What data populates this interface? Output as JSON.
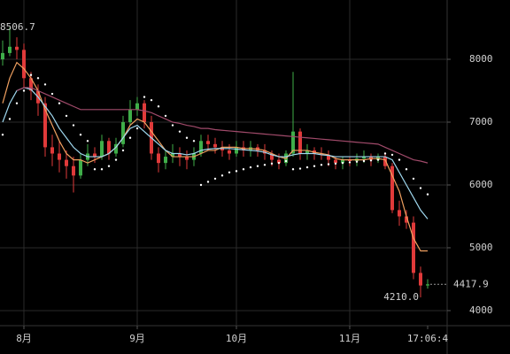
{
  "chart_data": {
    "type": "candlestick",
    "categories": [
      null,
      null,
      null,
      "8月",
      null,
      null,
      null,
      null,
      null,
      null,
      null,
      null,
      null,
      null,
      null,
      null,
      null,
      null,
      null,
      "9月",
      null,
      null,
      null,
      null,
      null,
      null,
      null,
      null,
      null,
      null,
      null,
      null,
      null,
      "10月",
      null,
      null,
      null,
      null,
      null,
      null,
      null,
      null,
      null,
      null,
      null,
      null,
      null,
      null,
      null,
      "11月",
      null,
      null,
      null,
      null,
      null,
      null,
      null,
      null,
      null,
      null,
      "17:06:4"
    ],
    "open": [
      8000,
      8100,
      8200,
      8150,
      7700,
      7500,
      7300,
      6600,
      6500,
      6400,
      6300,
      6150,
      6400,
      6500,
      6450,
      6700,
      6500,
      6650,
      7000,
      7200,
      7300,
      7000,
      6500,
      6350,
      6450,
      6500,
      6450,
      6400,
      6500,
      6700,
      6650,
      6600,
      6550,
      6500,
      6600,
      6550,
      6600,
      6550,
      6500,
      6400,
      6350,
      6500,
      6850,
      6500,
      6550,
      6500,
      6480,
      6400,
      6350,
      6400,
      6380,
      6420,
      6450,
      6400,
      6450,
      6300,
      5600,
      5500,
      5400,
      4600,
      4400
    ],
    "high": [
      8300,
      8506.7,
      8350,
      8250,
      7800,
      7600,
      7400,
      6800,
      6700,
      6550,
      6450,
      6500,
      6650,
      6600,
      6800,
      6750,
      6750,
      7100,
      7350,
      7400,
      7350,
      7100,
      6600,
      6550,
      6650,
      6600,
      6550,
      6600,
      6800,
      6800,
      6750,
      6700,
      6650,
      6700,
      6700,
      6700,
      6650,
      6650,
      6550,
      6500,
      6550,
      7800,
      6900,
      6650,
      6600,
      6600,
      6550,
      6450,
      6450,
      6450,
      6500,
      6550,
      6500,
      6500,
      6500,
      6350,
      5750,
      5600,
      5500,
      4700,
      4500
    ],
    "low": [
      7900,
      8050,
      8000,
      7550,
      7350,
      7100,
      6450,
      6300,
      6200,
      6100,
      5880,
      6100,
      6300,
      6350,
      6400,
      6400,
      6450,
      6600,
      6950,
      7100,
      6900,
      6400,
      6200,
      6250,
      6350,
      6300,
      6250,
      6300,
      6450,
      6550,
      6500,
      6450,
      6400,
      6450,
      6450,
      6450,
      6450,
      6400,
      6300,
      6250,
      6300,
      6450,
      6400,
      6400,
      6400,
      6400,
      6300,
      6250,
      6250,
      6300,
      6300,
      6350,
      6300,
      6350,
      6250,
      5550,
      5350,
      5300,
      4500,
      4210,
      4350
    ],
    "close": [
      8100,
      8200,
      8150,
      7700,
      7500,
      7300,
      6600,
      6500,
      6400,
      6300,
      6150,
      6400,
      6500,
      6450,
      6700,
      6500,
      6650,
      7000,
      7200,
      7300,
      7000,
      6500,
      6350,
      6450,
      6500,
      6450,
      6400,
      6500,
      6700,
      6650,
      6600,
      6550,
      6500,
      6600,
      6550,
      6600,
      6550,
      6500,
      6400,
      6350,
      6500,
      6850,
      6500,
      6550,
      6500,
      6480,
      6400,
      6350,
      6400,
      6380,
      6420,
      6450,
      6400,
      6450,
      6300,
      5600,
      5500,
      5400,
      4600,
      4400,
      4417.9
    ],
    "up_color": "#3fae49",
    "down_color": "#e03a3a",
    "lines": [
      {
        "color": "#f0a060",
        "values": [
          7300,
          7700,
          7950,
          7850,
          7700,
          7500,
          7200,
          6950,
          6700,
          6500,
          6400,
          6400,
          6350,
          6400,
          6450,
          6500,
          6600,
          6750,
          6950,
          7050,
          7000,
          6850,
          6700,
          6550,
          6450,
          6450,
          6450,
          6450,
          6500,
          6550,
          6550,
          6600,
          6600,
          6600,
          6580,
          6580,
          6570,
          6550,
          6500,
          6450,
          6420,
          6550,
          6550,
          6550,
          6520,
          6500,
          6480,
          6420,
          6400,
          6400,
          6400,
          6400,
          6420,
          6420,
          6400,
          6150,
          5900,
          5500,
          5150,
          4950,
          4950
        ]
      },
      {
        "color": "#9fd8ef",
        "values": [
          7000,
          7300,
          7500,
          7550,
          7520,
          7400,
          7250,
          7100,
          6900,
          6750,
          6600,
          6500,
          6450,
          6450,
          6450,
          6500,
          6600,
          6750,
          6900,
          6950,
          6850,
          6750,
          6650,
          6550,
          6500,
          6500,
          6480,
          6500,
          6550,
          6570,
          6580,
          6580,
          6580,
          6570,
          6560,
          6550,
          6540,
          6520,
          6480,
          6450,
          6450,
          6480,
          6500,
          6500,
          6500,
          6480,
          6470,
          6450,
          6450,
          6450,
          6450,
          6450,
          6450,
          6450,
          6450,
          6400,
          6200,
          6000,
          5800,
          5600,
          5460
        ]
      },
      {
        "color": "#a04a6a",
        "values": [
          null,
          null,
          7500,
          7550,
          7550,
          7500,
          7450,
          7400,
          7350,
          7300,
          7250,
          7200,
          7200,
          7200,
          7200,
          7200,
          7200,
          7200,
          7200,
          7200,
          7180,
          7150,
          7100,
          7050,
          7000,
          6980,
          6950,
          6930,
          6900,
          6900,
          6880,
          6870,
          6860,
          6850,
          6840,
          6830,
          6820,
          6810,
          6800,
          6790,
          6780,
          6770,
          6760,
          6750,
          6740,
          6730,
          6720,
          6710,
          6700,
          6690,
          6680,
          6670,
          6660,
          6650,
          6600,
          6550,
          6500,
          6450,
          6400,
          6380,
          6350
        ]
      }
    ],
    "sar": {
      "color": "#ffffff",
      "values": [
        6800,
        7050,
        7300,
        7500,
        7750,
        7700,
        7600,
        7450,
        7300,
        7100,
        6950,
        6800,
        6700,
        6250,
        6250,
        6300,
        6400,
        6550,
        6750,
        6900,
        7400,
        7350,
        7250,
        7100,
        6950,
        6850,
        6750,
        6700,
        6000,
        6050,
        6100,
        6150,
        6200,
        6220,
        6250,
        6280,
        6300,
        6320,
        6340,
        6350,
        6380,
        6250,
        6260,
        6280,
        6300,
        6320,
        6330,
        6340,
        6350,
        6360,
        6370,
        6380,
        6390,
        6400,
        6500,
        6480,
        6400,
        6250,
        6100,
        5950,
        5850
      ]
    },
    "ylim": [
      3760,
      8944
    ],
    "yticks": [
      4000,
      5000,
      6000,
      7000,
      8000
    ],
    "grid": true,
    "annotations": [
      {
        "value": 8506.7,
        "label": "8506.7"
      },
      {
        "value": 4210,
        "label": "4210.0"
      }
    ],
    "last_price": {
      "value": 4417.9,
      "label": "4417.9"
    }
  }
}
